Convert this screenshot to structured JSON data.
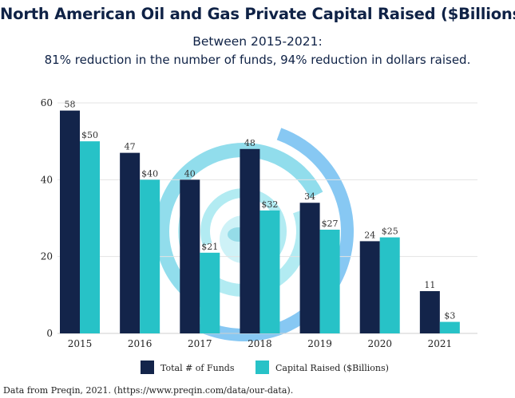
{
  "title": "North American Oil and Gas Private Capital Raised ($Billions)",
  "subtitle_line1": "Between 2015-2021:",
  "subtitle_line2": "81% reduction in the number of funds, 94% reduction in dollars raised.",
  "footer": "Data from Preqin, 2021. (https://www.preqin.com/data/our-data).",
  "colors": {
    "funds": "#13244a",
    "capital": "#27c2c7",
    "grid": "#e3e3e3",
    "swirl_light": "#9fe6ef",
    "swirl_mid": "#6cd2e6",
    "swirl_blue": "#5fb6ef"
  },
  "chart_data": {
    "type": "bar",
    "categories": [
      "2015",
      "2016",
      "2017",
      "2018",
      "2019",
      "2020",
      "2021"
    ],
    "series": [
      {
        "name": "Total # of Funds",
        "values": [
          58,
          47,
          40,
          48,
          34,
          24,
          11
        ],
        "labels": [
          "58",
          "47",
          "40",
          "48",
          "34",
          "24",
          "11"
        ]
      },
      {
        "name": "Capital Raised ($Billions)",
        "values": [
          50,
          40,
          21,
          32,
          27,
          25,
          3
        ],
        "labels": [
          "$50",
          "$40",
          "$21",
          "$32",
          "$27",
          "$25",
          "$3"
        ]
      }
    ],
    "ylim": [
      0,
      60
    ],
    "yticks": [
      0,
      20,
      40,
      60
    ],
    "grid": true,
    "legend_position": "bottom",
    "background_image": "globe-swirl"
  }
}
